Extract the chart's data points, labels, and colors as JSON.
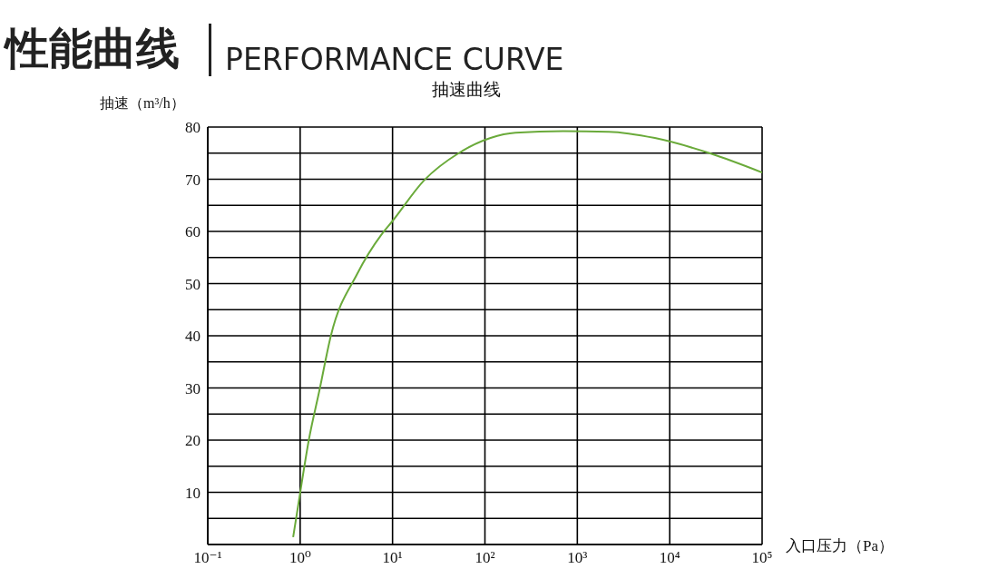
{
  "chart_data": {
    "type": "line",
    "title": "性能曲线",
    "subtitle": "PERFORMANCE CURVE",
    "annotations": [
      "抽速曲线"
    ],
    "xlabel": "入口压力（Pa）",
    "ylabel": "抽速（m³/h）",
    "log": "x",
    "grid": true,
    "legend": false,
    "marker": "none",
    "line_style": "solid",
    "x": [
      0.84,
      1.0,
      1.24,
      1.62,
      2.15,
      4.16,
      7.6,
      10,
      22,
      52,
      115,
      214,
      705,
      2200,
      6900,
      27000,
      100000
    ],
    "series": [
      {
        "color": "#6aaa3a",
        "values": [
          1.4,
          9.9,
          20,
          29.6,
          40,
          51.9,
          59.4,
          62,
          69.8,
          75,
          77.9,
          78.9,
          79.2,
          79.1,
          77.9,
          75,
          71.3
        ]
      }
    ],
    "xlim": [
      0.1,
      100000
    ],
    "xticks": [
      {
        "value": 0.1,
        "label": "10⁻¹"
      },
      {
        "value": 1,
        "label": "10⁰"
      },
      {
        "value": 10,
        "label": "10¹"
      },
      {
        "value": 100,
        "label": "10²"
      },
      {
        "value": 1000,
        "label": "10³"
      },
      {
        "value": 10000,
        "label": "10⁴"
      },
      {
        "value": 100000,
        "label": "10⁵"
      }
    ],
    "ylim": [
      0,
      80
    ],
    "yticks": [
      {
        "value": 0,
        "label": null
      },
      {
        "value": 5,
        "label": null
      },
      10,
      {
        "value": 15,
        "label": null
      },
      20,
      {
        "value": 25,
        "label": null
      },
      30,
      {
        "value": 35,
        "label": null
      },
      40,
      {
        "value": 45,
        "label": null
      },
      50,
      {
        "value": 55,
        "label": null
      },
      60,
      {
        "value": 65,
        "label": null
      },
      70,
      {
        "value": 75,
        "label": null
      },
      80
    ]
  }
}
